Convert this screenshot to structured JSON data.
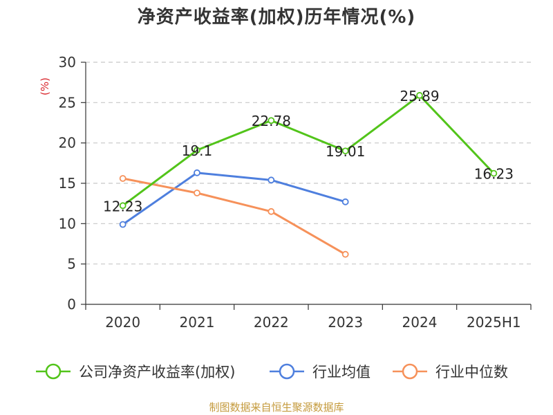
{
  "title": "净资产收益率(加权)历年情况(%)",
  "footer": "制图数据来自恒生聚源数据库",
  "colors": {
    "company": "#52c41a",
    "avg": "#4e7fde",
    "median": "#f6915a",
    "ylabel": "#d9262c",
    "footer": "#c49a3c",
    "grid": "#c8c8c8",
    "axis": "#333333"
  },
  "chart_data": {
    "type": "line",
    "title": "净资产收益率(加权)历年情况(%)",
    "ylabel": "(%)",
    "xlabel": "",
    "categories": [
      "2020",
      "2021",
      "2022",
      "2023",
      "2024",
      "2025H1"
    ],
    "ylim": [
      0,
      30
    ],
    "yticks": [
      0,
      5,
      10,
      15,
      20,
      25,
      30
    ],
    "grid": "horizontal dashed",
    "legend_position": "bottom",
    "series": [
      {
        "name": "公司净资产收益率(加权)",
        "color": "#52c41a",
        "labeled": true,
        "values": [
          12.23,
          19.1,
          22.78,
          19.01,
          25.89,
          16.23
        ],
        "labels": [
          "12.23",
          "19.1",
          "22.78",
          "19.01",
          "25.89",
          "16.23"
        ]
      },
      {
        "name": "行业均值",
        "color": "#4e7fde",
        "labeled": false,
        "values": [
          9.9,
          16.3,
          15.4,
          12.7,
          null,
          null
        ]
      },
      {
        "name": "行业中位数",
        "color": "#f6915a",
        "labeled": false,
        "values": [
          15.6,
          13.8,
          11.5,
          6.2,
          null,
          null
        ]
      }
    ]
  }
}
